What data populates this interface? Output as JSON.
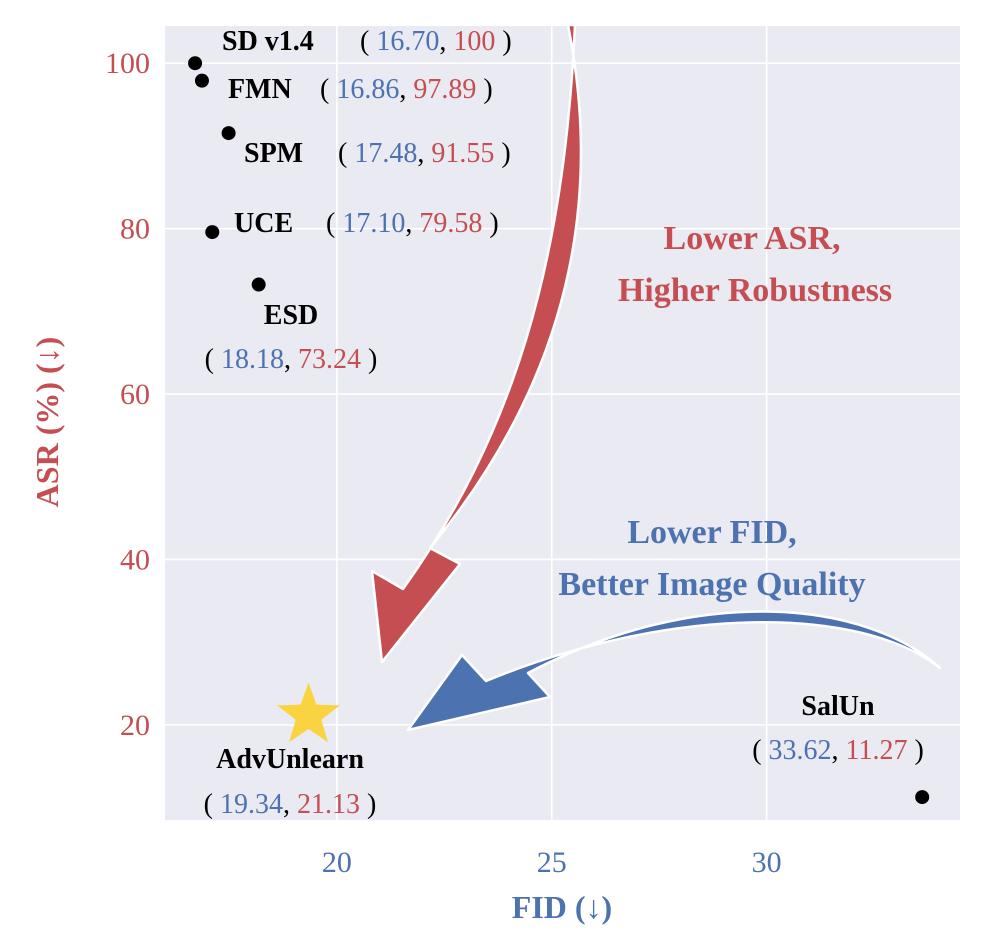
{
  "chart_data": {
    "type": "scatter",
    "xlabel": "FID (↓)",
    "ylabel": "ASR (%) (↓)",
    "xlim": [
      16.0,
      34.5
    ],
    "ylim": [
      8.5,
      104.5
    ],
    "xticks": [
      20,
      25,
      30
    ],
    "yticks": [
      20,
      40,
      60,
      80,
      100
    ],
    "grid": true,
    "background": "#eaeaf2",
    "colors": {
      "fid": "#4c72b0",
      "asr": "#c44e52",
      "star": "#f9d440",
      "point": "#000000"
    },
    "points": [
      {
        "label": "SD v1.4",
        "fid": "16.70",
        "asr": "100",
        "x": 16.7,
        "y": 100
      },
      {
        "label": "FMN",
        "fid": "16.86",
        "asr": "97.89",
        "x": 16.86,
        "y": 97.89
      },
      {
        "label": "SPM",
        "fid": "17.48",
        "asr": "91.55",
        "x": 17.48,
        "y": 91.55
      },
      {
        "label": "UCE",
        "fid": "17.10",
        "asr": "79.58",
        "x": 17.1,
        "y": 79.58
      },
      {
        "label": "ESD",
        "fid": "18.18",
        "asr": "73.24",
        "x": 18.18,
        "y": 73.24
      },
      {
        "label": "SalUn",
        "fid": "33.62",
        "asr": "11.27",
        "x": 33.62,
        "y": 11.27
      },
      {
        "label": "AdvUnlearn",
        "fid": "19.34",
        "asr": "21.13",
        "x": 19.34,
        "y": 21.13,
        "marker": "star"
      }
    ],
    "annotations": {
      "asr_line1": "Lower ASR,",
      "asr_line2": "Higher Robustness",
      "fid_line1": "Lower FID,",
      "fid_line2": "Better Image Quality"
    }
  }
}
